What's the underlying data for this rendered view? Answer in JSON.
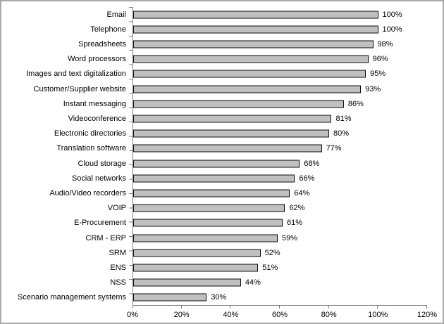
{
  "chart_data": {
    "type": "bar",
    "orientation": "horizontal",
    "title": "",
    "xlabel": "",
    "ylabel": "",
    "xlim": [
      0,
      120
    ],
    "grid": false,
    "legend": false,
    "bar_fill_color": "#c0c0c0",
    "bar_border_color": "#0d0d0d",
    "axis_color": "#808080",
    "categories": [
      "Email",
      "Telephone",
      "Spreadsheets",
      "Word processors",
      "Images and text digitalization",
      "Customer/Supplier website",
      "Instant messaging",
      "Videoconference",
      "Electronic directories",
      "Translation software",
      "Cloud storage",
      "Social networks",
      "Audio/Video recorders",
      "VOIP",
      "E-Procurement",
      "CRM - ERP",
      "SRM",
      "ENS",
      "NSS",
      "Scenario management systems"
    ],
    "values": [
      100,
      100,
      98,
      96,
      95,
      93,
      86,
      81,
      80,
      77,
      68,
      66,
      64,
      62,
      61,
      59,
      52,
      51,
      44,
      30
    ],
    "value_labels": [
      "100%",
      "100%",
      "98%",
      "96%",
      "95%",
      "93%",
      "86%",
      "81%",
      "80%",
      "77%",
      "68%",
      "66%",
      "64%",
      "62%",
      "61%",
      "59%",
      "52%",
      "51%",
      "44%",
      "30%"
    ],
    "x_tick_values": [
      0,
      20,
      40,
      60,
      80,
      100,
      120
    ],
    "x_tick_labels": [
      "0%",
      "20%",
      "40%",
      "60%",
      "80%",
      "100%",
      "120%"
    ]
  }
}
